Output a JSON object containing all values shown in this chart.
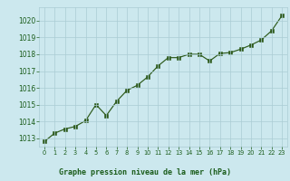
{
  "x": [
    0,
    1,
    2,
    3,
    4,
    5,
    6,
    7,
    8,
    9,
    10,
    11,
    12,
    13,
    14,
    15,
    16,
    17,
    18,
    19,
    20,
    21,
    22,
    23
  ],
  "y": [
    1012.8,
    1013.3,
    1013.55,
    1013.7,
    1014.05,
    1015.0,
    1014.35,
    1015.2,
    1015.85,
    1016.15,
    1016.65,
    1017.3,
    1017.8,
    1017.8,
    1018.0,
    1018.0,
    1017.6,
    1018.05,
    1018.1,
    1018.3,
    1018.55,
    1018.85,
    1019.4,
    1020.3
  ],
  "line_color": "#2d5a1b",
  "marker": "s",
  "marker_size": 2.5,
  "bg_color": "#cce8ee",
  "grid_color": "#aaccd4",
  "xlabel": "Graphe pression niveau de la mer (hPa)",
  "tick_label_color": "#1a5c1a",
  "ylim": [
    1012.5,
    1020.8
  ],
  "xlim": [
    -0.5,
    23.5
  ],
  "yticks": [
    1013,
    1014,
    1015,
    1016,
    1017,
    1018,
    1019,
    1020
  ],
  "xticks": [
    0,
    1,
    2,
    3,
    4,
    5,
    6,
    7,
    8,
    9,
    10,
    11,
    12,
    13,
    14,
    15,
    16,
    17,
    18,
    19,
    20,
    21,
    22,
    23
  ]
}
